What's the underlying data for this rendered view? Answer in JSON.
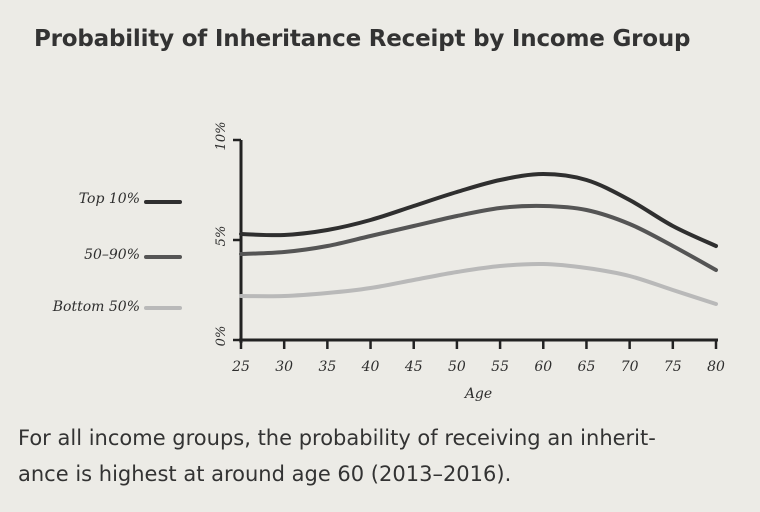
{
  "figure": {
    "title": "Probability of Inheritance Receipt by Income Group",
    "caption_line1": "For all income groups, the probability of receiving an inherit-",
    "caption_line2": "ance is highest at around age 60 (2013–2016)."
  },
  "colors": {
    "background": "#ecebe6",
    "top10": "#2f2f2f",
    "mid": "#555555",
    "bottom": "#b9b9b9",
    "axis": "#222222"
  },
  "chart_data": {
    "type": "line",
    "xlabel": "Age",
    "ylabel": "",
    "xlim": [
      25,
      80
    ],
    "ylim": [
      0,
      10
    ],
    "x_ticks": [
      25,
      30,
      35,
      40,
      45,
      50,
      55,
      60,
      65,
      70,
      75,
      80
    ],
    "x_tick_labels": [
      "25",
      "30",
      "35",
      "40",
      "45",
      "50",
      "55",
      "60",
      "65",
      "70",
      "75",
      "80"
    ],
    "y_ticks": [
      0,
      5,
      10
    ],
    "y_tick_labels": [
      "0%",
      "5%",
      "10%"
    ],
    "legend_placement": "left",
    "grid": false,
    "x": [
      25,
      30,
      35,
      40,
      45,
      50,
      55,
      60,
      65,
      70,
      75,
      80
    ],
    "series": [
      {
        "name": "Top 10%",
        "values": [
          5.3,
          5.25,
          5.5,
          6.0,
          6.7,
          7.4,
          8.0,
          8.3,
          8.0,
          7.0,
          5.7,
          4.7
        ]
      },
      {
        "name": "50–90%",
        "values": [
          4.3,
          4.4,
          4.7,
          5.2,
          5.7,
          6.2,
          6.6,
          6.7,
          6.5,
          5.8,
          4.7,
          3.5
        ]
      },
      {
        "name": "Bottom 50%",
        "values": [
          2.2,
          2.2,
          2.35,
          2.6,
          3.0,
          3.4,
          3.7,
          3.8,
          3.6,
          3.2,
          2.5,
          1.8
        ]
      }
    ]
  }
}
